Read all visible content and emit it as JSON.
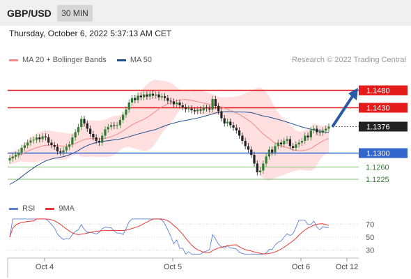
{
  "header": {
    "symbol": "GBP/USD",
    "timeframe": "30 MIN"
  },
  "datetime": "Thursday, October 6, 2022 5:37:13 AM CET",
  "legend": {
    "main": [
      {
        "label": "MA 20 + Bollinger Bands",
        "color": "#f28b82"
      },
      {
        "label": "MA 50",
        "color": "#1f4e8c"
      }
    ],
    "rsi": [
      {
        "label": "RSI",
        "color": "#5b7fd6"
      },
      {
        "label": "9MA",
        "color": "#e53935"
      }
    ]
  },
  "credit": "Research © 2022 Trading Central",
  "colors": {
    "up": "#2e7d32",
    "down": "#222222",
    "resistance": "#e31b1b",
    "pivot": "#3366cc",
    "support": "#7cbf6b",
    "band": "#ffd9d9",
    "arrow": "#2a5ba8"
  },
  "chart_data": [
    {
      "type": "candlestick",
      "ylim": [
        1.1175,
        1.1535
      ],
      "x_ticks": [
        "Oct 4",
        "Oct 5",
        "Oct 6",
        "Oct 12"
      ],
      "levels": [
        {
          "label": "1.1480",
          "value": 1.148,
          "kind": "resistance"
        },
        {
          "label": "1.1430",
          "value": 1.143,
          "kind": "resistance"
        },
        {
          "label": "1.1376",
          "value": 1.1376,
          "kind": "last"
        },
        {
          "label": "1.1300",
          "value": 1.13,
          "kind": "pivot"
        },
        {
          "label": "1.1260",
          "value": 1.126,
          "kind": "support"
        },
        {
          "label": "1.1225",
          "value": 1.1225,
          "kind": "support"
        }
      ],
      "closes": [
        1.1285,
        1.129,
        1.1295,
        1.1302,
        1.1315,
        1.1322,
        1.133,
        1.1336,
        1.1338,
        1.1345,
        1.134,
        1.1348,
        1.1345,
        1.133,
        1.1323,
        1.1318,
        1.1305,
        1.1302,
        1.1308,
        1.1318,
        1.1325,
        1.1345,
        1.136,
        1.1375,
        1.1398,
        1.1385,
        1.137,
        1.1355,
        1.1345,
        1.1335,
        1.133,
        1.135,
        1.1368,
        1.1375,
        1.138,
        1.1378,
        1.138,
        1.1395,
        1.141,
        1.1425,
        1.1445,
        1.1458,
        1.1452,
        1.1465,
        1.146,
        1.1468,
        1.1462,
        1.147,
        1.1465,
        1.1468,
        1.146,
        1.1463,
        1.1458,
        1.145,
        1.1448,
        1.144,
        1.1445,
        1.1437,
        1.1432,
        1.1426,
        1.1428,
        1.1423,
        1.142,
        1.1425,
        1.1422,
        1.143,
        1.1428,
        1.1425,
        1.1455,
        1.1435,
        1.142,
        1.14,
        1.1385,
        1.139,
        1.138,
        1.1373,
        1.1365,
        1.135,
        1.1335,
        1.132,
        1.131,
        1.1295,
        1.127,
        1.1245,
        1.125,
        1.127,
        1.129,
        1.131,
        1.1302,
        1.132,
        1.133,
        1.1325,
        1.1335,
        1.134,
        1.132,
        1.1315,
        1.1325,
        1.133,
        1.1335,
        1.135,
        1.1345,
        1.1365,
        1.137,
        1.136,
        1.1358,
        1.1365,
        1.137,
        1.1376
      ],
      "rsi": {
        "ylim": [
          20,
          80
        ],
        "ticks": [
          70,
          50,
          30
        ]
      }
    }
  ]
}
